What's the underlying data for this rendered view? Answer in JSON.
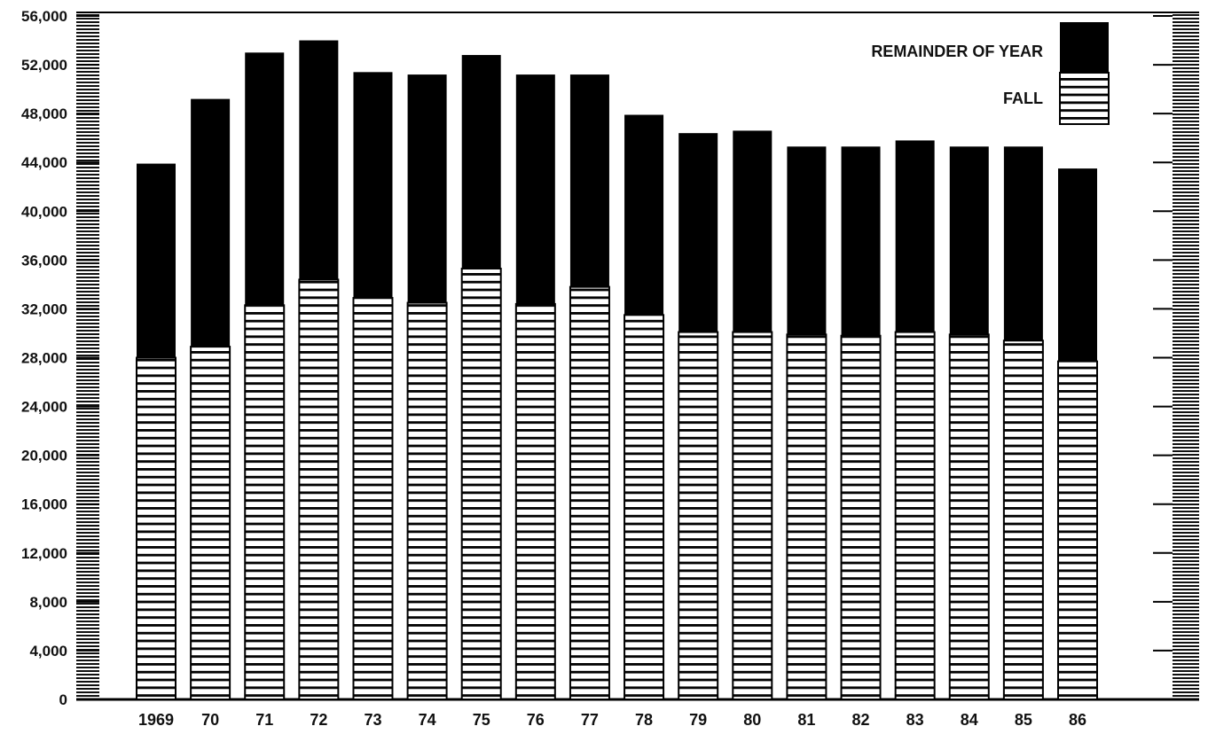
{
  "chart_data": {
    "type": "bar",
    "stacked": true,
    "title": "",
    "xlabel": "",
    "ylabel": "",
    "categories": [
      "1969",
      "70",
      "71",
      "72",
      "73",
      "74",
      "75",
      "76",
      "77",
      "78",
      "79",
      "80",
      "81",
      "82",
      "83",
      "84",
      "85",
      "86"
    ],
    "series": [
      {
        "name": "FALL",
        "pattern": "horizontal-stripes",
        "values": [
          28000,
          28900,
          32300,
          34400,
          32900,
          32500,
          35300,
          32400,
          33800,
          31500,
          30100,
          30100,
          29900,
          29800,
          30100,
          29900,
          29400,
          27700
        ]
      },
      {
        "name": "REMAINDER OF YEAR",
        "color": "#000000",
        "values": [
          15900,
          20300,
          20700,
          19600,
          18500,
          18700,
          17500,
          18800,
          17400,
          16400,
          16300,
          16500,
          15400,
          15500,
          15700,
          15400,
          15900,
          15800
        ]
      }
    ],
    "ylim": [
      0,
      56000
    ],
    "yticks": [
      "0",
      "4,000",
      "8,000",
      "12,000",
      "16,000",
      "20,000",
      "24,000",
      "28,000",
      "32,000",
      "36,000",
      "40,000",
      "44,000",
      "48,000",
      "52,000",
      "56,000"
    ],
    "ytick_values": [
      0,
      4000,
      8000,
      12000,
      16000,
      20000,
      24000,
      28000,
      32000,
      36000,
      40000,
      44000,
      48000,
      52000,
      56000
    ],
    "grid": false,
    "legend": {
      "placement": "top-right",
      "entries": [
        "REMAINDER OF YEAR",
        "FALL"
      ]
    }
  }
}
